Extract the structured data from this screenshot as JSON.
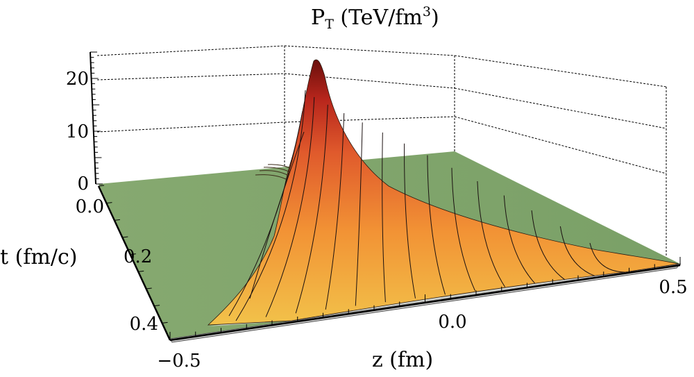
{
  "chart_data": {
    "type": "surface3d",
    "title": {
      "main": "P",
      "subscript": "T",
      "unit_prefix": "(TeV/fm",
      "unit_power": "3",
      "unit_suffix": ")"
    },
    "xlabel": "z (fm)",
    "ylabel": "t (fm/c)",
    "z_ticks": [
      "0",
      "10",
      "20"
    ],
    "t_ticks": [
      "0.0",
      "0.2",
      "0.4"
    ],
    "x_ticks": [
      "−0.5",
      "0.0",
      "0.5"
    ],
    "xlim": [
      -0.5,
      0.5
    ],
    "ylim": [
      0,
      0.45
    ],
    "zlim": [
      0,
      25
    ],
    "peak": {
      "z": -0.2,
      "t": 0.0,
      "value": 23.5
    },
    "colors": {
      "floor": "#7ea36b",
      "base": "#f2b93e",
      "mid": "#f48a2e",
      "high": "#d4452c",
      "peak": "#7a1410"
    }
  }
}
